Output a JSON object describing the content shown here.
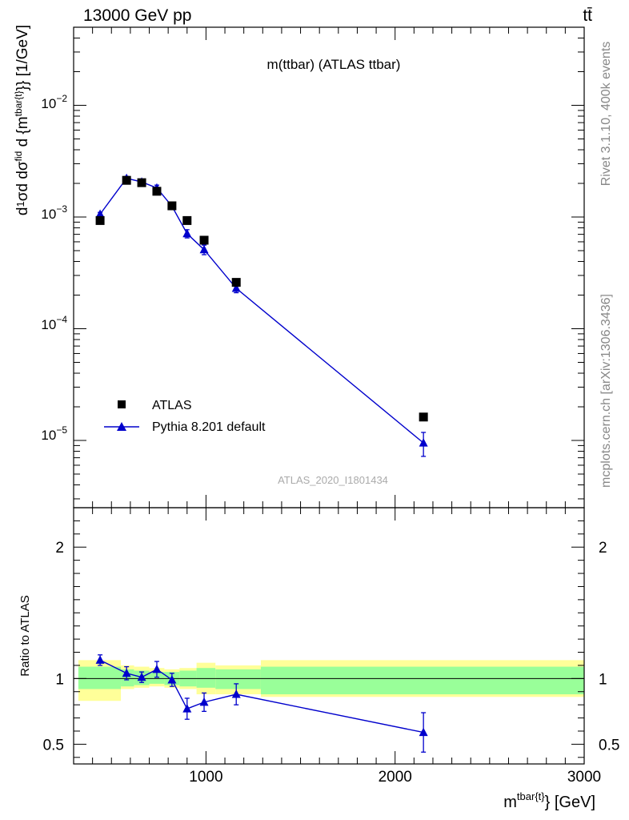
{
  "header": {
    "energy_label": "13000 GeV pp",
    "process_label": "tt̄"
  },
  "side_labels": {
    "rivet": "Rivet 3.1.10,  400k events",
    "mcplots": "mcplots.cern.ch [arXiv:1306.3436]"
  },
  "colors": {
    "data": "#000000",
    "mc": "#0000cc",
    "band_inner": "#99ff99",
    "band_outer": "#ffff99"
  },
  "chart_data": [
    {
      "type": "scatter",
      "title": "m(ttbar) (ATLAS ttbar)",
      "watermark": "ATLAS_2020_I1801434",
      "ylabel": "d (1/σ) dσ^{fid} / d {m^{tbar{t}}} [1/GeV]",
      "yscale": "log",
      "ylim": [
        2.5e-06,
        0.05
      ],
      "xlim": [
        300,
        3000
      ],
      "y_tick_labels": [
        "10^-5",
        "10^-4",
        "10^-3",
        "10^-2"
      ],
      "legend_position": "bottom-left",
      "series": [
        {
          "name": "ATLAS",
          "marker": "square",
          "x": [
            440,
            580,
            660,
            740,
            820,
            900,
            990,
            1160,
            2150
          ],
          "y": [
            0.00093,
            0.00213,
            0.00203,
            0.0017,
            0.00126,
            0.00093,
            0.00062,
            0.00026,
            1.62e-05
          ]
        },
        {
          "name": "Pythia 8.201 default",
          "marker": "triangle",
          "x": [
            440,
            580,
            660,
            740,
            820,
            900,
            990,
            1160,
            2150
          ],
          "y": [
            0.00106,
            0.00222,
            0.00206,
            0.00182,
            0.00125,
            0.00071,
            0.00051,
            0.00023,
            9.5e-06
          ],
          "yerr": [
            4e-05,
            9e-05,
            8e-05,
            0.00011,
            7e-05,
            6e-05,
            5e-05,
            2e-05,
            2.3e-06
          ]
        }
      ]
    },
    {
      "type": "line",
      "xlabel": "m^{tbar{t}} [GeV]",
      "ylabel": "Ratio to ATLAS",
      "xlim": [
        300,
        3000
      ],
      "ylim": [
        0.35,
        2.3
      ],
      "x_ticks": [
        1000,
        2000,
        3000
      ],
      "y_ticks": [
        0.5,
        1,
        2
      ],
      "reference_line": 1,
      "uncertainty_bands": [
        {
          "x_low": 325,
          "x_high": 550,
          "inner": [
            0.92,
            1.09
          ],
          "outer": [
            0.83,
            1.14
          ]
        },
        {
          "x_low": 550,
          "x_high": 620,
          "inner": [
            0.94,
            1.07
          ],
          "outer": [
            0.92,
            1.1
          ]
        },
        {
          "x_low": 620,
          "x_high": 700,
          "inner": [
            0.95,
            1.06
          ],
          "outer": [
            0.93,
            1.09
          ]
        },
        {
          "x_low": 700,
          "x_high": 780,
          "inner": [
            0.96,
            1.05
          ],
          "outer": [
            0.94,
            1.08
          ]
        },
        {
          "x_low": 780,
          "x_high": 860,
          "inner": [
            0.95,
            1.05
          ],
          "outer": [
            0.93,
            1.07
          ]
        },
        {
          "x_low": 860,
          "x_high": 950,
          "inner": [
            0.94,
            1.06
          ],
          "outer": [
            0.92,
            1.08
          ]
        },
        {
          "x_low": 950,
          "x_high": 1050,
          "inner": [
            0.93,
            1.08
          ],
          "outer": [
            0.88,
            1.12
          ]
        },
        {
          "x_low": 1050,
          "x_high": 1290,
          "inner": [
            0.92,
            1.07
          ],
          "outer": [
            0.88,
            1.1
          ]
        },
        {
          "x_low": 1290,
          "x_high": 3000,
          "inner": [
            0.88,
            1.09
          ],
          "outer": [
            0.86,
            1.14
          ]
        }
      ],
      "series": [
        {
          "name": "Pythia 8.201 default",
          "x": [
            440,
            580,
            660,
            740,
            820,
            900,
            990,
            1160,
            2150
          ],
          "y": [
            1.14,
            1.04,
            1.01,
            1.07,
            0.99,
            0.77,
            0.82,
            0.88,
            0.59
          ],
          "yerr": [
            0.04,
            0.05,
            0.04,
            0.06,
            0.05,
            0.08,
            0.07,
            0.08,
            0.15
          ]
        }
      ]
    }
  ]
}
